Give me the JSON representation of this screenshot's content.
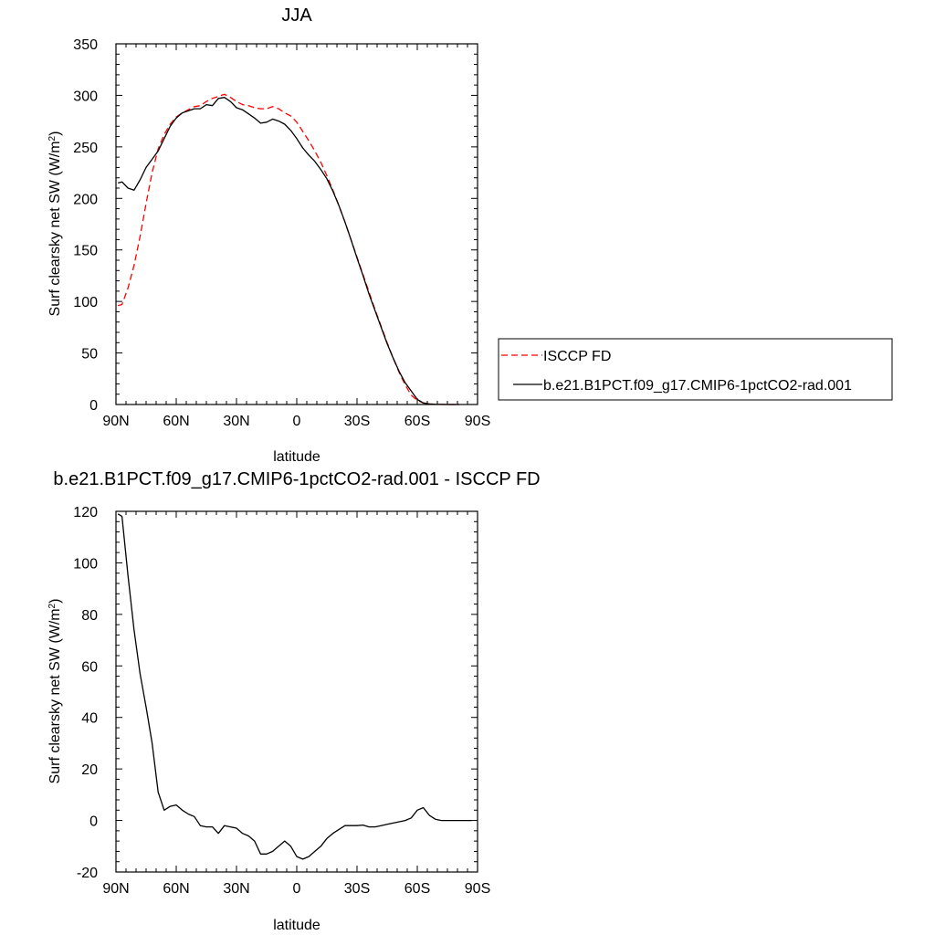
{
  "chart_data": [
    {
      "type": "line",
      "title": "JJA",
      "xlabel": "latitude",
      "ylabel": "Surf clearsky net SW (W/m",
      "ylabel_sup": "2",
      "ylabel_end": ")",
      "xlim": [
        90,
        -90
      ],
      "ylim": [
        0,
        350
      ],
      "x_ticks": [
        90,
        60,
        30,
        0,
        -30,
        -60,
        -90
      ],
      "x_tick_labels": [
        "90N",
        "60N",
        "30N",
        "0",
        "30S",
        "60S",
        "90S"
      ],
      "y_ticks": [
        0,
        50,
        100,
        150,
        200,
        250,
        300,
        350
      ],
      "y_tick_labels": [
        "0",
        "50",
        "100",
        "150",
        "200",
        "250",
        "300",
        "350"
      ],
      "legend_position": "right",
      "series": [
        {
          "name": "ISCCP FD",
          "color": "#ff0000",
          "dash": "dashed",
          "x": [
            89,
            87,
            84,
            81,
            78,
            75,
            72,
            69,
            66,
            63,
            60,
            57,
            54,
            51,
            48,
            45,
            42,
            39,
            36,
            33,
            30,
            27,
            24,
            21,
            18,
            15,
            12,
            9,
            6,
            3,
            0,
            -3,
            -6,
            -9,
            -12,
            -15,
            -18,
            -21,
            -24,
            -27,
            -30,
            -33,
            -36,
            -39,
            -42,
            -45,
            -48,
            -51,
            -54,
            -57,
            -60,
            -63,
            -66,
            -69,
            -72,
            -75,
            -78,
            -81
          ],
          "values": [
            96,
            97,
            113,
            135,
            163,
            195,
            225,
            248,
            262,
            272,
            279,
            283,
            286,
            289,
            290,
            294,
            297,
            299,
            301,
            298,
            294,
            291,
            290,
            288,
            287,
            287,
            289,
            287,
            283,
            280,
            274,
            265,
            256,
            246,
            235,
            222,
            208,
            193,
            177,
            160,
            143,
            126,
            109,
            92,
            76,
            60,
            45,
            31,
            19,
            9,
            4,
            1.5,
            0.5,
            0.2,
            0.1,
            0,
            0,
            0
          ]
        },
        {
          "name": "b.e21.B1PCT.f09_g17.CMIP6-1pctCO2-rad.001",
          "color": "#000000",
          "dash": "solid",
          "x": [
            89,
            87,
            84,
            81,
            78,
            75,
            72,
            69,
            66,
            63,
            60,
            57,
            54,
            51,
            48,
            45,
            42,
            39,
            36,
            33,
            30,
            27,
            24,
            21,
            18,
            15,
            12,
            9,
            6,
            3,
            0,
            -3,
            -6,
            -9,
            -12,
            -15,
            -18,
            -21,
            -24,
            -27,
            -30,
            -33,
            -36,
            -39,
            -42,
            -45,
            -48,
            -51,
            -54,
            -57,
            -60,
            -63,
            -66,
            -69,
            -72,
            -75,
            -78,
            -81
          ],
          "values": [
            215,
            216,
            210,
            208,
            218,
            230,
            238,
            246,
            258,
            270,
            278,
            283,
            285,
            287,
            287,
            291,
            290,
            297,
            298,
            294,
            288,
            286,
            282,
            278,
            273,
            274,
            277,
            275,
            272,
            266,
            258,
            249,
            242,
            236,
            228,
            219,
            207,
            193,
            177,
            160,
            142,
            125,
            107,
            91,
            75,
            59,
            45,
            32,
            21,
            13,
            5,
            1.5,
            0.5,
            0.2,
            0.1,
            0,
            0,
            0
          ]
        }
      ]
    },
    {
      "type": "line",
      "title": "b.e21.B1PCT.f09_g17.CMIP6-1pctCO2-rad.001 - ISCCP FD",
      "xlabel": "latitude",
      "ylabel": "Surf clearsky net SW (W/m",
      "ylabel_sup": "2",
      "ylabel_end": ")",
      "xlim": [
        90,
        -90
      ],
      "ylim": [
        -20,
        120
      ],
      "x_ticks": [
        90,
        60,
        30,
        0,
        -30,
        -60,
        -90
      ],
      "x_tick_labels": [
        "90N",
        "60N",
        "30N",
        "0",
        "30S",
        "60S",
        "90S"
      ],
      "y_ticks": [
        -20,
        0,
        20,
        40,
        60,
        80,
        100,
        120
      ],
      "y_tick_labels": [
        "-20",
        "0",
        "20",
        "40",
        "60",
        "80",
        "100",
        "120"
      ],
      "series": [
        {
          "color": "#000000",
          "dash": "solid",
          "x": [
            89,
            87,
            84,
            81,
            78,
            75,
            72,
            69,
            66,
            63,
            60,
            57,
            54,
            51,
            48,
            45,
            42,
            39,
            36,
            33,
            30,
            27,
            24,
            21,
            18,
            15,
            12,
            9,
            6,
            3,
            0,
            -3,
            -6,
            -9,
            -12,
            -15,
            -18,
            -21,
            -24,
            -27,
            -30,
            -33,
            -36,
            -39,
            -42,
            -45,
            -48,
            -51,
            -54,
            -57,
            -60,
            -63,
            -66,
            -69,
            -72,
            -75,
            -78,
            -81,
            -84,
            -87
          ],
          "values": [
            119,
            118,
            95,
            74,
            57,
            44,
            30,
            11,
            4,
            5.5,
            6,
            4,
            2.5,
            1.5,
            -2,
            -2.5,
            -2.5,
            -5,
            -2,
            -2.5,
            -3,
            -5,
            -6,
            -8,
            -13,
            -13,
            -12,
            -10,
            -8,
            -10,
            -14,
            -15,
            -14,
            -12,
            -10,
            -7,
            -5,
            -3.5,
            -2,
            -2,
            -2,
            -1.8,
            -2.5,
            -2.5,
            -2,
            -1.5,
            -1,
            -0.5,
            0,
            1,
            4,
            5,
            2,
            0.5,
            0,
            0,
            0,
            0,
            0,
            0
          ]
        }
      ]
    }
  ]
}
